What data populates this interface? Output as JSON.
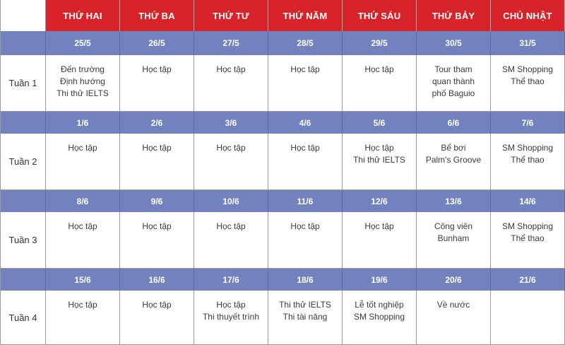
{
  "header": {
    "days": [
      "THỨ HAI",
      "THỨ BA",
      "THỨ TƯ",
      "THỨ NĂM",
      "THỨ SÁU",
      "THỨ BẢY",
      "CHỦ NHẬT"
    ]
  },
  "colors": {
    "header_bg": "#d8232a",
    "date_row_bg": "#7182bf",
    "text": "#3a3a3a"
  },
  "weeks": [
    {
      "label": "Tuần 1",
      "dates": [
        "25/5",
        "26/5",
        "27/5",
        "28/5",
        "29/5",
        "30/5",
        "31/5"
      ],
      "activities": [
        "Đến trường\nĐịnh hướng\nThi thử IELTS",
        "Học tập",
        "Học tập",
        "Học tập",
        "Học tập",
        "Tour tham\nquan thành\nphố Baguio",
        "SM Shopping\nThể thao"
      ]
    },
    {
      "label": "Tuần 2",
      "dates": [
        "1/6",
        "2/6",
        "3/6",
        "4/6",
        "5/6",
        "6/6",
        "7/6"
      ],
      "activities": [
        "Học tập",
        "Học tập",
        "Học tập",
        "Học tập",
        "Học tập\nThi thử IELTS",
        "Bể bơi\nPalm's Groove",
        "SM Shopping\nThể thao"
      ]
    },
    {
      "label": "Tuần 3",
      "dates": [
        "8/6",
        "9/6",
        "10/6",
        "11/6",
        "12/6",
        "13/6",
        "14/6"
      ],
      "activities": [
        "Học tập",
        "Học tập",
        "Học tập",
        "Học tập",
        "Học tập",
        "Công viên\nBunham",
        "SM Shopping\nThể thao"
      ]
    },
    {
      "label": "Tuần 4",
      "dates": [
        "15/6",
        "16/6",
        "17/6",
        "18/6",
        "19/6",
        "20/6",
        "21/6"
      ],
      "activities": [
        "Học tập",
        "Học tập",
        "Học tập\nThi thuyết trình",
        "Thi thử IELTS\nThi tài năng",
        "Lễ tốt nghiệp\nSM Shopping",
        "Về nước",
        ""
      ]
    }
  ]
}
